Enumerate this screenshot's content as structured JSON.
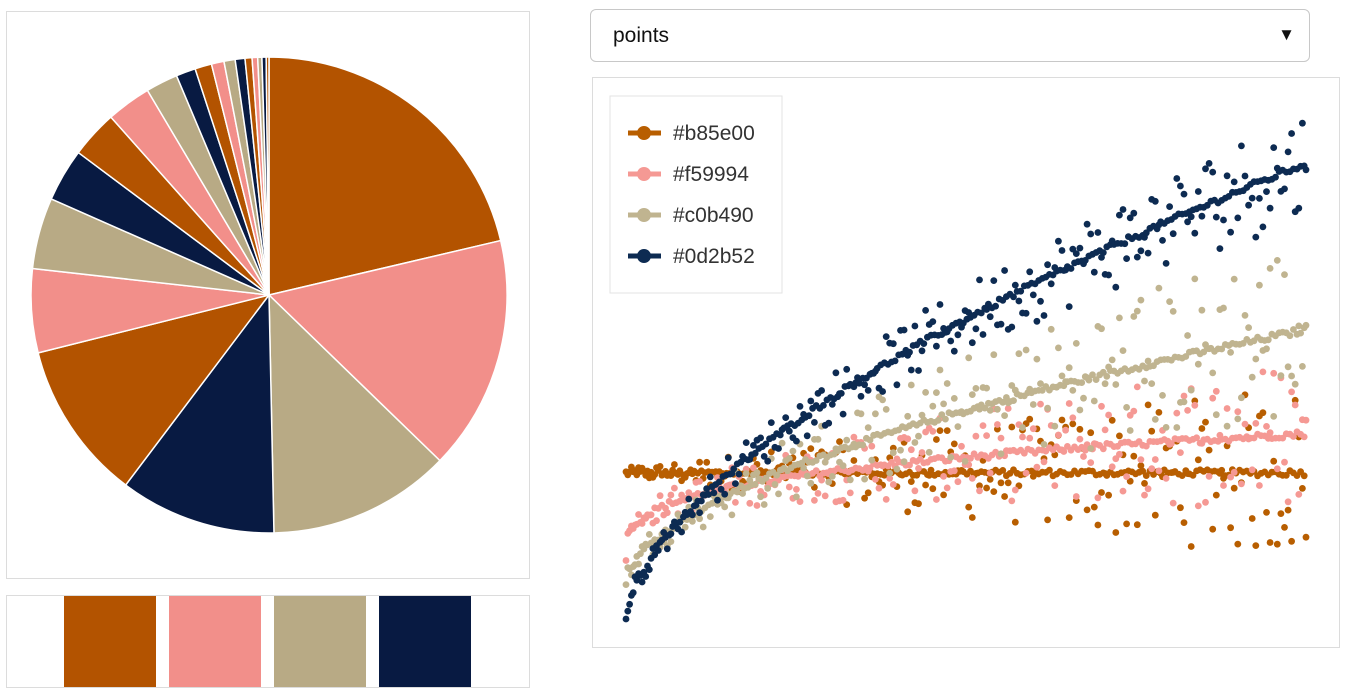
{
  "dropdown": {
    "selected": "points"
  },
  "palette": {
    "colors": [
      "#b85e00",
      "#f59994",
      "#c0b490",
      "#0d2b52"
    ],
    "swatch_fill_colors": [
      "#b35300",
      "#f28f8a",
      "#b8aa85",
      "#081a42"
    ]
  },
  "chart_data": [
    {
      "type": "pie",
      "title": "",
      "stroke": "#ffffff",
      "start_angle_deg": 90,
      "values": [
        22.5,
        16.8,
        13.1,
        11.2,
        11.4,
        6.0,
        5.1,
        3.8,
        3.4,
        3.2,
        2.3,
        1.4,
        1.2,
        0.9,
        0.8,
        0.7,
        0.5,
        0.4,
        0.3,
        0.3,
        0.2
      ],
      "colors": [
        "#b35300",
        "#f28f8a",
        "#b8aa85",
        "#081a42",
        "#b35300",
        "#f28f8a",
        "#b8aa85",
        "#081a42",
        "#b35300",
        "#f28f8a",
        "#b8aa85",
        "#081a42",
        "#b35300",
        "#f28f8a",
        "#b8aa85",
        "#081a42",
        "#b35300",
        "#f28f8a",
        "#b8aa85",
        "#081a42",
        "#b35300"
      ]
    },
    {
      "type": "scatter",
      "title": "",
      "xlabel": "",
      "ylabel": "",
      "xlim": [
        0,
        1
      ],
      "ylim": [
        0,
        1
      ],
      "legend_position": "top-left",
      "series": [
        {
          "name": "#b85e00",
          "color": "#b85e00",
          "trend_start": 0.285,
          "trend_end": 0.285,
          "curve_power": 1,
          "noise_start": 0.01,
          "noise_end": 0.17
        },
        {
          "name": "#f59994",
          "color": "#f59994",
          "trend_start": 0.12,
          "trend_end": 0.36,
          "curve_power": 0.3,
          "noise_start": 0.02,
          "noise_end": 0.15
        },
        {
          "name": "#c0b490",
          "color": "#c0b490",
          "trend_start": 0.07,
          "trend_end": 0.56,
          "curve_power": 0.55,
          "noise_start": 0.02,
          "noise_end": 0.19
        },
        {
          "name": "#0d2b52",
          "color": "#0d2b52",
          "trend_start": 0.0,
          "trend_end": 0.88,
          "curve_power": 0.6,
          "noise_start": 0.02,
          "noise_end": 0.11
        }
      ]
    }
  ]
}
